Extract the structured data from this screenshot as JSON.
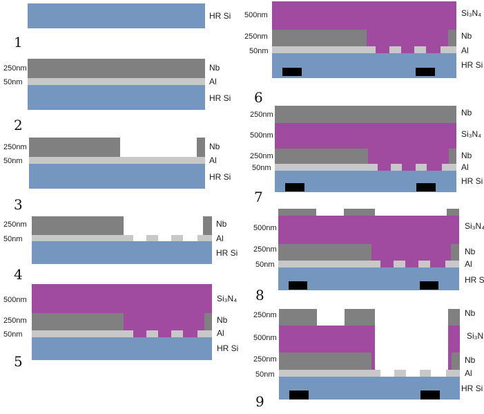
{
  "colors": {
    "si": "#7596bf",
    "al": "#c8c8c8",
    "nb": "#808080",
    "sin": "#a04aa0",
    "black": "#000000"
  },
  "labels": {
    "hr_si": "HR Si",
    "al": "Al",
    "nb": "Nb",
    "si3n4": "Si₃N₄",
    "t250": "250nm",
    "t50": "50nm",
    "t500": "500nm"
  },
  "steps": [
    "1",
    "2",
    "3",
    "4",
    "5",
    "6",
    "7",
    "8",
    "9"
  ]
}
